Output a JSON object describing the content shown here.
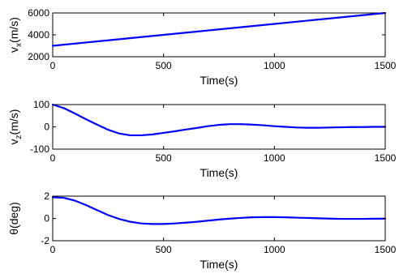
{
  "chart_data": [
    {
      "type": "line",
      "title": "",
      "xlabel": "Time(s)",
      "ylabel": "v",
      "ylabel_subscript": "x",
      "ylabel_unit": "(m/s)",
      "xlim": [
        0,
        1500
      ],
      "ylim": [
        2000,
        6000
      ],
      "xticks": [
        0,
        500,
        1000,
        1500
      ],
      "yticks": [
        2000,
        4000,
        6000
      ],
      "grid": false,
      "series_color": "#0000ff",
      "series": [
        {
          "x": [
            0,
            250,
            500,
            750,
            1000,
            1250,
            1500
          ],
          "values": [
            3000,
            3500,
            4000,
            4500,
            5000,
            5500,
            6000
          ]
        }
      ]
    },
    {
      "type": "line",
      "title": "",
      "xlabel": "Time(s)",
      "ylabel": "v",
      "ylabel_subscript": "z",
      "ylabel_unit": "(m/s)",
      "xlim": [
        0,
        1500
      ],
      "ylim": [
        -100,
        100
      ],
      "xticks": [
        0,
        500,
        1000,
        1500
      ],
      "yticks": [
        -100,
        0,
        100
      ],
      "grid": false,
      "series_color": "#0000ff",
      "series": [
        {
          "x": [
            0,
            50,
            100,
            150,
            200,
            250,
            300,
            350,
            400,
            450,
            500,
            550,
            600,
            650,
            700,
            750,
            800,
            850,
            900,
            950,
            1000,
            1050,
            1100,
            1150,
            1200,
            1250,
            1300,
            1350,
            1400,
            1450,
            1500
          ],
          "values": [
            100,
            84,
            60,
            34,
            10,
            -13,
            -30,
            -38,
            -38,
            -34,
            -27,
            -20,
            -12,
            -5,
            3,
            9,
            12,
            12,
            10,
            7,
            3,
            0,
            -3,
            -4,
            -4,
            -3,
            -2,
            -1,
            -1,
            0,
            0
          ]
        }
      ]
    },
    {
      "type": "line",
      "title": "",
      "xlabel": "Time(s)",
      "ylabel": "θ",
      "ylabel_subscript": "",
      "ylabel_unit": "(deg)",
      "xlim": [
        0,
        1500
      ],
      "ylim": [
        -2,
        2
      ],
      "xticks": [
        0,
        500,
        1000,
        1500
      ],
      "yticks": [
        -2,
        0,
        2
      ],
      "grid": false,
      "series_color": "#0000ff",
      "series": [
        {
          "x": [
            0,
            50,
            100,
            150,
            200,
            250,
            300,
            350,
            400,
            450,
            500,
            550,
            600,
            650,
            700,
            750,
            800,
            850,
            900,
            950,
            1000,
            1050,
            1100,
            1150,
            1200,
            1250,
            1300,
            1350,
            1400,
            1450,
            1500
          ],
          "values": [
            1.9,
            1.85,
            1.6,
            1.2,
            0.75,
            0.3,
            -0.05,
            -0.3,
            -0.45,
            -0.5,
            -0.5,
            -0.45,
            -0.38,
            -0.3,
            -0.2,
            -0.1,
            -0.02,
            0.05,
            0.1,
            0.12,
            0.12,
            0.1,
            0.07,
            0.04,
            0.01,
            -0.02,
            -0.04,
            -0.04,
            -0.04,
            -0.03,
            -0.02
          ]
        }
      ]
    }
  ]
}
